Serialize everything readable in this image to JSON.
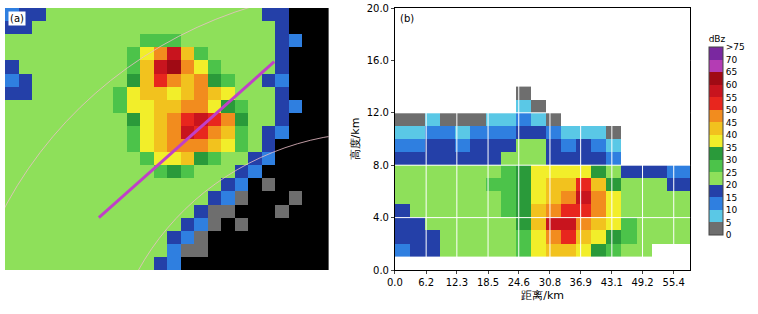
{
  "chart_data": [
    {
      "type": "heatmap",
      "title": "(a)",
      "tick_labels": false,
      "x": [
        0,
        1,
        2,
        3,
        4,
        5,
        6,
        7,
        8,
        9,
        10,
        11,
        12,
        13,
        14,
        15,
        16,
        17,
        18,
        19,
        20,
        21,
        22,
        23
      ],
      "y": [
        19,
        18,
        17,
        16,
        15,
        14,
        13,
        12,
        11,
        10,
        9,
        8,
        7,
        6,
        5,
        4,
        3,
        2,
        1,
        0
      ],
      "z": [
        [
          10,
          15,
          15,
          20,
          20,
          20,
          20,
          20,
          20,
          20,
          20,
          20,
          20,
          20,
          20,
          20,
          20,
          20,
          20,
          15,
          15,
          null,
          null,
          null
        ],
        [
          15,
          15,
          20,
          20,
          20,
          20,
          20,
          20,
          20,
          20,
          20,
          20,
          20,
          20,
          20,
          20,
          20,
          20,
          20,
          20,
          15,
          null,
          null,
          null
        ],
        [
          20,
          20,
          20,
          20,
          20,
          20,
          20,
          20,
          20,
          20,
          25,
          25,
          25,
          20,
          20,
          20,
          20,
          20,
          20,
          20,
          15,
          10,
          null,
          null
        ],
        [
          20,
          20,
          20,
          20,
          20,
          20,
          20,
          20,
          20,
          25,
          35,
          45,
          55,
          40,
          25,
          20,
          20,
          20,
          20,
          20,
          15,
          null,
          null,
          null
        ],
        [
          15,
          20,
          20,
          20,
          20,
          20,
          20,
          20,
          20,
          25,
          40,
          55,
          60,
          45,
          35,
          25,
          20,
          20,
          20,
          20,
          15,
          null,
          null,
          null
        ],
        [
          10,
          15,
          20,
          20,
          20,
          20,
          20,
          20,
          20,
          30,
          40,
          50,
          45,
          40,
          45,
          30,
          25,
          20,
          20,
          15,
          10,
          null,
          null,
          null
        ],
        [
          15,
          15,
          20,
          20,
          20,
          20,
          20,
          20,
          25,
          35,
          40,
          40,
          35,
          40,
          45,
          40,
          35,
          20,
          20,
          20,
          15,
          null,
          null,
          null
        ],
        [
          20,
          20,
          20,
          20,
          20,
          20,
          20,
          20,
          25,
          35,
          35,
          40,
          40,
          45,
          45,
          35,
          30,
          25,
          20,
          20,
          15,
          10,
          null,
          null
        ],
        [
          20,
          20,
          20,
          20,
          20,
          20,
          20,
          20,
          20,
          30,
          35,
          40,
          45,
          50,
          55,
          50,
          45,
          30,
          20,
          20,
          15,
          null,
          null,
          null
        ],
        [
          20,
          20,
          20,
          20,
          20,
          20,
          20,
          20,
          20,
          25,
          35,
          40,
          45,
          55,
          50,
          45,
          40,
          25,
          20,
          15,
          10,
          null,
          null,
          null
        ],
        [
          20,
          20,
          20,
          20,
          20,
          20,
          20,
          20,
          20,
          25,
          35,
          40,
          45,
          45,
          45,
          40,
          35,
          25,
          20,
          15,
          null,
          null,
          null,
          null
        ],
        [
          20,
          20,
          20,
          20,
          20,
          20,
          20,
          20,
          20,
          20,
          25,
          35,
          35,
          40,
          30,
          25,
          20,
          20,
          15,
          10,
          null,
          null,
          null,
          null
        ],
        [
          20,
          20,
          20,
          20,
          20,
          20,
          20,
          20,
          20,
          20,
          20,
          25,
          30,
          25,
          20,
          20,
          20,
          15,
          10,
          null,
          null,
          null,
          null,
          null
        ],
        [
          20,
          20,
          20,
          20,
          20,
          20,
          20,
          20,
          20,
          20,
          20,
          20,
          20,
          20,
          20,
          20,
          15,
          10,
          null,
          0,
          null,
          null,
          null,
          null
        ],
        [
          20,
          20,
          20,
          20,
          20,
          20,
          20,
          20,
          20,
          20,
          20,
          20,
          20,
          20,
          20,
          15,
          10,
          0,
          null,
          null,
          null,
          0,
          null,
          null
        ],
        [
          20,
          20,
          20,
          20,
          20,
          20,
          20,
          20,
          20,
          20,
          20,
          20,
          20,
          20,
          15,
          0,
          0,
          null,
          null,
          null,
          0,
          null,
          null,
          null
        ],
        [
          20,
          20,
          20,
          20,
          20,
          20,
          20,
          20,
          20,
          20,
          20,
          20,
          20,
          15,
          10,
          0,
          null,
          0,
          null,
          null,
          null,
          null,
          null,
          null
        ],
        [
          20,
          20,
          20,
          20,
          20,
          20,
          20,
          20,
          20,
          20,
          20,
          20,
          15,
          10,
          0,
          null,
          null,
          null,
          null,
          null,
          null,
          null,
          null,
          null
        ],
        [
          20,
          20,
          20,
          20,
          20,
          20,
          20,
          20,
          20,
          20,
          20,
          20,
          10,
          0,
          0,
          null,
          null,
          null,
          null,
          null,
          null,
          null,
          null,
          null
        ],
        [
          20,
          20,
          20,
          20,
          20,
          20,
          20,
          20,
          20,
          20,
          20,
          15,
          10,
          null,
          null,
          null,
          null,
          null,
          null,
          null,
          null,
          null,
          null,
          null
        ]
      ]
    },
    {
      "type": "heatmap",
      "title": "(b)",
      "xlabel": "距离/km",
      "ylabel": "高度/km",
      "xlim": [
        0,
        58.7
      ],
      "ylim": [
        0,
        20
      ],
      "xticks": [
        {
          "value": 0,
          "label": "0.0"
        },
        6.2,
        12.3,
        18.5,
        24.6,
        30.8,
        36.9,
        43.1,
        49.2,
        55.4
      ],
      "yticks": [
        {
          "value": 0,
          "label": "0.0"
        },
        {
          "value": 4,
          "label": "4.0"
        },
        {
          "value": 8,
          "label": "8.0"
        },
        {
          "value": 12,
          "label": "12.0"
        },
        {
          "value": 16,
          "label": "16.0"
        },
        {
          "value": 20,
          "label": "20.0"
        }
      ],
      "grid": true,
      "x": [
        1.5,
        4.5,
        7.5,
        10.5,
        13.5,
        16.5,
        19.5,
        22.5,
        25.5,
        28.5,
        31.5,
        34.5,
        37.5,
        40.5,
        43.5,
        46.5,
        49.5,
        52.5,
        55.5,
        58.5
      ],
      "y": [
        13.5,
        12.5,
        11.5,
        10.5,
        9.5,
        8.5,
        7.5,
        6.5,
        5.5,
        4.5,
        3.5,
        2.5,
        1.5
      ],
      "z": [
        [
          null,
          null,
          null,
          null,
          null,
          null,
          null,
          null,
          0,
          null,
          null,
          null,
          null,
          null,
          null,
          null,
          null,
          null,
          null,
          null
        ],
        [
          null,
          null,
          null,
          null,
          null,
          null,
          null,
          null,
          5,
          0,
          null,
          null,
          null,
          null,
          null,
          null,
          null,
          null,
          null,
          null
        ],
        [
          0,
          0,
          5,
          0,
          0,
          0,
          5,
          5,
          10,
          5,
          0,
          null,
          null,
          null,
          null,
          null,
          null,
          null,
          null,
          null
        ],
        [
          5,
          5,
          10,
          10,
          5,
          10,
          10,
          10,
          15,
          15,
          10,
          5,
          5,
          5,
          0,
          null,
          null,
          null,
          null,
          null
        ],
        [
          10,
          10,
          15,
          15,
          10,
          15,
          15,
          15,
          20,
          20,
          15,
          10,
          15,
          10,
          5,
          null,
          null,
          null,
          null,
          null
        ],
        [
          15,
          15,
          15,
          15,
          15,
          15,
          15,
          20,
          20,
          20,
          15,
          15,
          15,
          15,
          10,
          null,
          null,
          null,
          null,
          null
        ],
        [
          20,
          20,
          20,
          20,
          20,
          20,
          20,
          25,
          30,
          35,
          35,
          35,
          35,
          30,
          20,
          15,
          15,
          15,
          10,
          10
        ],
        [
          20,
          20,
          20,
          20,
          20,
          20,
          25,
          25,
          30,
          35,
          40,
          40,
          50,
          40,
          30,
          20,
          20,
          20,
          15,
          15
        ],
        [
          20,
          20,
          20,
          20,
          20,
          20,
          20,
          25,
          30,
          35,
          40,
          45,
          55,
          45,
          35,
          20,
          20,
          20,
          20,
          20
        ],
        [
          15,
          20,
          20,
          20,
          20,
          20,
          20,
          25,
          30,
          40,
          45,
          50,
          50,
          45,
          35,
          20,
          20,
          20,
          20,
          20
        ],
        [
          15,
          15,
          20,
          20,
          20,
          20,
          20,
          20,
          30,
          40,
          55,
          55,
          45,
          40,
          35,
          25,
          20,
          20,
          20,
          20
        ],
        [
          15,
          15,
          15,
          20,
          20,
          20,
          20,
          20,
          25,
          35,
          45,
          50,
          40,
          35,
          30,
          25,
          20,
          20,
          20,
          20
        ],
        [
          10,
          15,
          15,
          20,
          20,
          20,
          20,
          20,
          25,
          35,
          40,
          40,
          35,
          30,
          25,
          20,
          20,
          null,
          null,
          null
        ]
      ],
      "colorbar": {
        "title": "dBz",
        "range": [
          0,
          75
        ],
        "levels": [
          0,
          5,
          10,
          15,
          20,
          25,
          30,
          35,
          40,
          45,
          50,
          55,
          60,
          65,
          70
        ],
        "colors": [
          "#6e6e6e",
          "#5ac8e6",
          "#2f7fe0",
          "#2440a8",
          "#8ee05a",
          "#4cc34a",
          "#2a9a3a",
          "#f2ee2a",
          "#f2c21e",
          "#f28c1e",
          "#e8261e",
          "#c8141e",
          "#a00a14",
          "#b43cb4",
          "#7a28a0"
        ],
        "ticks": [
          0,
          5,
          10,
          15,
          20,
          25,
          30,
          35,
          40,
          45,
          50,
          55,
          60,
          65,
          70,
          {
            "value": 75,
            "label": ">75"
          }
        ]
      }
    }
  ]
}
